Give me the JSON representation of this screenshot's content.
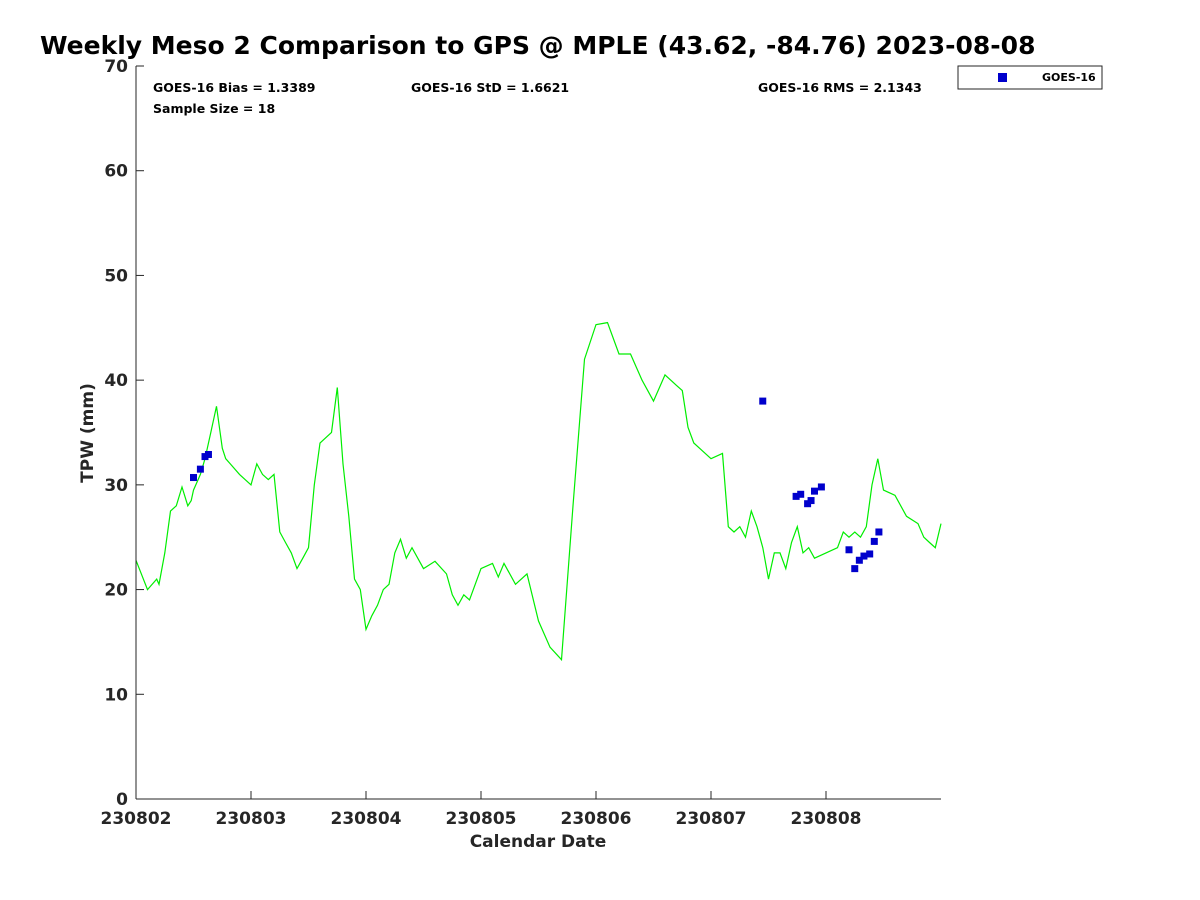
{
  "chart_data": {
    "type": "scatter",
    "title": "Weekly Meso 2 Comparison to GPS @ MPLE (43.62, -84.76) 2023-08-08",
    "xlabel": "Calendar Date",
    "ylabel": "TPW (mm)",
    "xlim": [
      0,
      7
    ],
    "ylim": [
      0,
      70
    ],
    "yticks": [
      0,
      10,
      20,
      30,
      40,
      50,
      60,
      70
    ],
    "xticks": [
      {
        "value": 0,
        "label": "230802"
      },
      {
        "value": 1,
        "label": "230803"
      },
      {
        "value": 2,
        "label": "230804"
      },
      {
        "value": 3,
        "label": "230805"
      },
      {
        "value": 4,
        "label": "230806"
      },
      {
        "value": 5,
        "label": "230807"
      },
      {
        "value": 6,
        "label": "230808"
      }
    ],
    "stats": {
      "bias": "GOES-16 Bias = 1.3389",
      "std": "GOES-16 StD = 1.6621",
      "rms": "GOES-16 RMS = 2.1343",
      "sample": "Sample Size = 18"
    },
    "legend": {
      "label": "GOES-16",
      "position": "top-right outside"
    },
    "series": [
      {
        "name": "GPS",
        "kind": "line",
        "color": "#00ee00",
        "x": [
          0.0,
          0.1,
          0.18,
          0.2,
          0.25,
          0.3,
          0.35,
          0.4,
          0.45,
          0.48,
          0.5,
          0.52,
          0.56,
          0.6,
          0.65,
          0.7,
          0.75,
          0.78,
          0.82,
          0.9,
          1.0,
          1.05,
          1.1,
          1.15,
          1.2,
          1.25,
          1.3,
          1.35,
          1.4,
          1.45,
          1.5,
          1.55,
          1.6,
          1.65,
          1.7,
          1.75,
          1.8,
          1.85,
          1.9,
          1.95,
          2.0,
          2.05,
          2.1,
          2.15,
          2.2,
          2.25,
          2.3,
          2.35,
          2.4,
          2.5,
          2.6,
          2.7,
          2.75,
          2.8,
          2.85,
          2.9,
          3.0,
          3.1,
          3.15,
          3.2,
          3.3,
          3.4,
          3.5,
          3.6,
          3.7,
          3.8,
          3.9,
          4.0,
          4.1,
          4.2,
          4.3,
          4.4,
          4.5,
          4.6,
          4.7,
          4.75,
          4.8,
          4.85,
          4.9,
          5.0,
          5.1,
          5.15,
          5.2,
          5.25,
          5.3,
          5.35,
          5.4,
          5.45,
          5.5,
          5.55,
          5.6,
          5.65,
          5.7,
          5.75,
          5.8,
          5.85,
          5.9,
          6.0,
          6.1,
          6.15,
          6.2,
          6.25,
          6.3,
          6.35,
          6.4,
          6.45,
          6.5,
          6.6,
          6.7,
          6.8,
          6.85,
          6.9,
          6.95,
          7.0
        ],
        "y": [
          22.8,
          20.0,
          21.0,
          20.5,
          23.5,
          27.5,
          28.0,
          29.8,
          28.0,
          28.5,
          29.5,
          30.0,
          31.0,
          32.5,
          35.0,
          37.5,
          33.5,
          32.5,
          32.0,
          31.0,
          30.0,
          32.0,
          31.0,
          30.5,
          31.0,
          25.5,
          24.5,
          23.5,
          22.0,
          23.0,
          24.0,
          30.0,
          34.0,
          34.5,
          35.0,
          39.3,
          32.0,
          27.0,
          21.0,
          20.0,
          16.2,
          17.5,
          18.5,
          20.0,
          20.5,
          23.5,
          24.8,
          23.0,
          24.0,
          22.0,
          22.7,
          21.5,
          19.5,
          18.5,
          19.5,
          19.0,
          22.0,
          22.5,
          21.2,
          22.5,
          20.5,
          21.5,
          17.0,
          14.5,
          13.3,
          28.0,
          42.0,
          45.3,
          45.5,
          42.5,
          42.5,
          40.0,
          38.0,
          40.5,
          39.5,
          39.0,
          35.5,
          34.0,
          33.5,
          32.5,
          33.0,
          26.0,
          25.5,
          26.0,
          25.0,
          27.5,
          26.0,
          24.0,
          21.0,
          23.5,
          23.5,
          22.0,
          24.5,
          26.0,
          23.5,
          24.0,
          23.0,
          23.5,
          24.0,
          25.5,
          25.0,
          25.5,
          25.0,
          26.0,
          30.0,
          32.5,
          29.5,
          29.0,
          27.0,
          26.3,
          25.0,
          24.5,
          24.0,
          26.3
        ]
      },
      {
        "name": "GOES-16",
        "kind": "scatter",
        "color": "#0000cc",
        "x": [
          0.5,
          0.56,
          0.6,
          0.63,
          5.45,
          5.74,
          5.78,
          5.84,
          5.87,
          5.9,
          5.96,
          6.2,
          6.25,
          6.29,
          6.33,
          6.38,
          6.42,
          6.46
        ],
        "y": [
          30.7,
          31.5,
          32.7,
          32.9,
          38.0,
          28.9,
          29.1,
          28.2,
          28.5,
          29.4,
          29.8,
          23.8,
          22.0,
          22.8,
          23.2,
          23.4,
          24.6,
          25.5
        ]
      }
    ]
  }
}
